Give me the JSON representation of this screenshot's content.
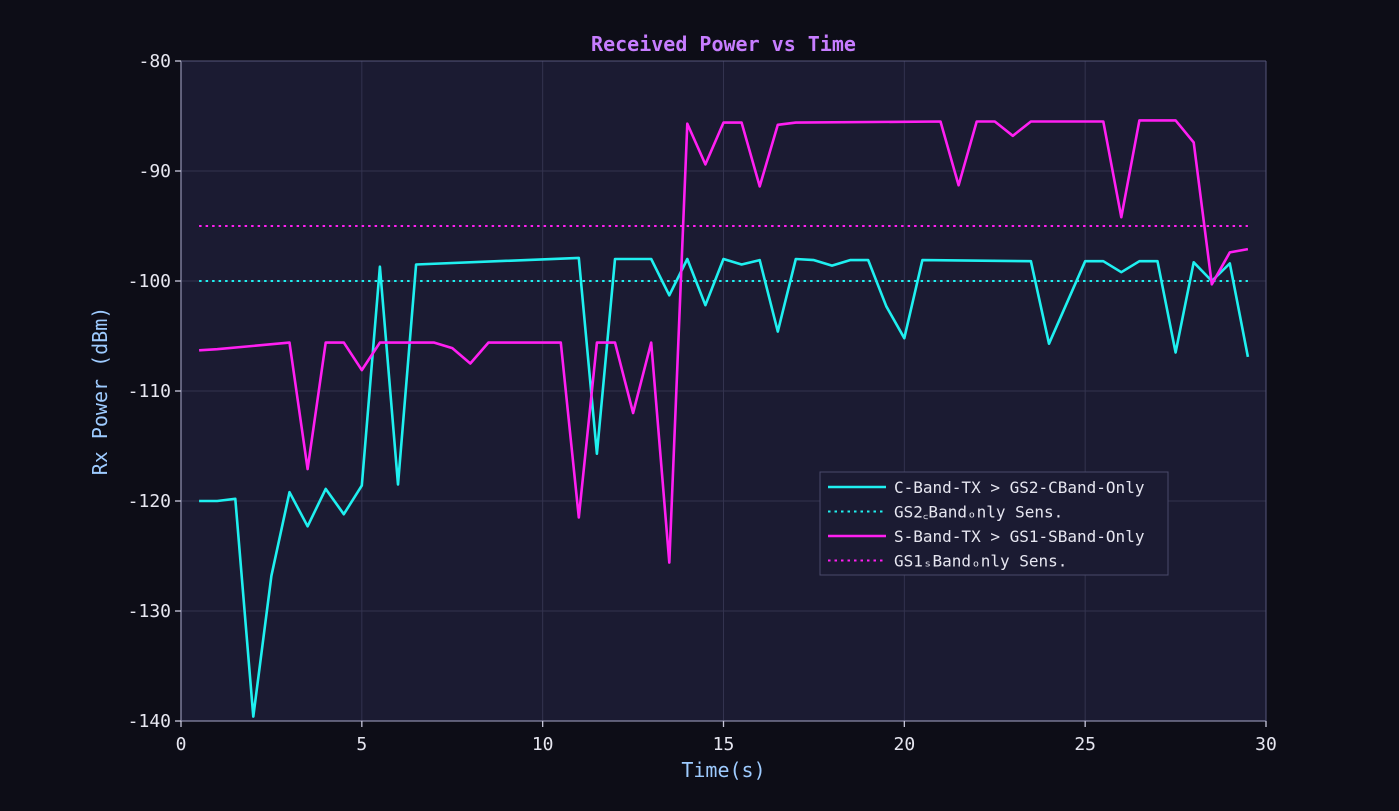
{
  "chart_data": {
    "type": "line",
    "title": "Received Power vs Time",
    "xlabel": "Time(s)",
    "ylabel": "Rx Power (dBm)",
    "xlim": [
      0,
      30
    ],
    "ylim": [
      -140,
      -80
    ],
    "xticks": [
      0,
      5,
      10,
      15,
      20,
      25,
      30
    ],
    "yticks": [
      -140,
      -130,
      -120,
      -110,
      -100,
      -90,
      -80
    ],
    "grid": true,
    "legend_position": "center-right",
    "colors": {
      "background": "#0d0d17",
      "plot_background": "#1b1b32",
      "title": "#c77dff",
      "axis_label": "#9ecbff",
      "tick_label": "#e6e6f0",
      "grid": "#33334f"
    },
    "series": [
      {
        "name": "C-Band-TX > GS2-CBand-Only",
        "style": "solid",
        "color": "#1ff0f0",
        "points": [
          [
            0.5,
            -120
          ],
          [
            1,
            -120
          ],
          [
            1.5,
            -119.8
          ],
          [
            2,
            -139.6
          ],
          [
            2.5,
            -126.8
          ],
          [
            3,
            -119.2
          ],
          [
            3.5,
            -122.3
          ],
          [
            4,
            -118.9
          ],
          [
            4.5,
            -121.2
          ],
          [
            5,
            -118.6
          ],
          [
            5.5,
            -98.7
          ],
          [
            6,
            -118.5
          ],
          [
            6.5,
            -98.5
          ],
          [
            11,
            -97.9
          ],
          [
            11.5,
            -115.7
          ],
          [
            12,
            -98
          ],
          [
            13,
            -98
          ],
          [
            13.5,
            -101.3
          ],
          [
            14,
            -98
          ],
          [
            14.5,
            -102.2
          ],
          [
            15,
            -98
          ],
          [
            15.5,
            -98.5
          ],
          [
            16,
            -98.1
          ],
          [
            16.5,
            -104.6
          ],
          [
            17,
            -98
          ],
          [
            17.5,
            -98.1
          ],
          [
            18,
            -98.6
          ],
          [
            18.5,
            -98.1
          ],
          [
            19,
            -98.1
          ],
          [
            19.5,
            -102.3
          ],
          [
            20,
            -105.2
          ],
          [
            20.5,
            -98.1
          ],
          [
            23.5,
            -98.2
          ],
          [
            24,
            -105.7
          ],
          [
            25,
            -98.2
          ],
          [
            25.5,
            -98.2
          ],
          [
            26,
            -99.2
          ],
          [
            26.5,
            -98.2
          ],
          [
            27,
            -98.2
          ],
          [
            27.5,
            -106.5
          ],
          [
            28,
            -98.3
          ],
          [
            28.5,
            -100
          ],
          [
            29,
            -98.4
          ],
          [
            29.5,
            -106.9
          ]
        ]
      },
      {
        "name": "GS2꜀Bandₒnly Sens.",
        "style": "dotted",
        "color": "#1ff0f0",
        "points": [
          [
            0.5,
            -100
          ],
          [
            29.5,
            -100
          ]
        ]
      },
      {
        "name": "S-Band-TX > GS1-SBand-Only",
        "style": "solid",
        "color": "#ff1ff2",
        "points": [
          [
            0.5,
            -106.3
          ],
          [
            1,
            -106.2
          ],
          [
            3,
            -105.6
          ],
          [
            3.5,
            -117.1
          ],
          [
            4,
            -105.6
          ],
          [
            4.5,
            -105.6
          ],
          [
            5,
            -108.1
          ],
          [
            5.5,
            -105.6
          ],
          [
            7,
            -105.6
          ],
          [
            7.5,
            -106.1
          ],
          [
            8,
            -107.5
          ],
          [
            8.5,
            -105.6
          ],
          [
            10.5,
            -105.6
          ],
          [
            11,
            -121.5
          ],
          [
            11.5,
            -105.6
          ],
          [
            12,
            -105.6
          ],
          [
            12.5,
            -112
          ],
          [
            13,
            -105.6
          ],
          [
            13.5,
            -125.6
          ],
          [
            14,
            -85.7
          ],
          [
            14.5,
            -89.4
          ],
          [
            15,
            -85.6
          ],
          [
            15.5,
            -85.6
          ],
          [
            16,
            -91.4
          ],
          [
            16.5,
            -85.8
          ],
          [
            17,
            -85.6
          ],
          [
            21,
            -85.5
          ],
          [
            21.5,
            -91.3
          ],
          [
            22,
            -85.5
          ],
          [
            22.5,
            -85.5
          ],
          [
            23,
            -86.8
          ],
          [
            23.5,
            -85.5
          ],
          [
            25.5,
            -85.5
          ],
          [
            26,
            -94.2
          ],
          [
            26.5,
            -85.4
          ],
          [
            27.5,
            -85.4
          ],
          [
            28,
            -87.4
          ],
          [
            28.5,
            -100.3
          ],
          [
            29,
            -97.4
          ],
          [
            29.5,
            -97.1
          ]
        ]
      },
      {
        "name": "GS1ₛBandₒnly Sens.",
        "style": "dotted",
        "color": "#ff1ff2",
        "points": [
          [
            0.5,
            -95
          ],
          [
            29.5,
            -95
          ]
        ]
      }
    ]
  }
}
